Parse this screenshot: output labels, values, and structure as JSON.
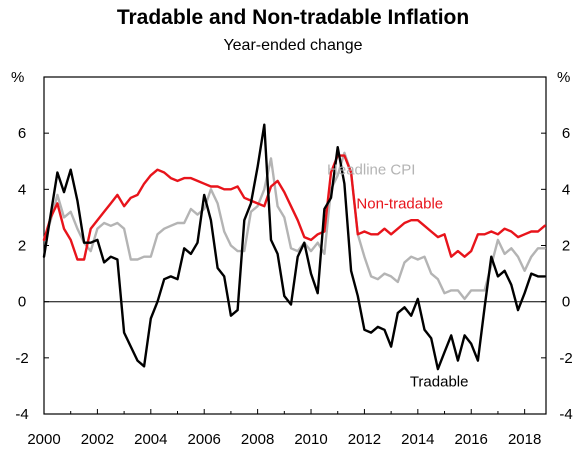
{
  "chart_data": {
    "type": "line",
    "title": "Tradable and Non-tradable Inflation",
    "subtitle": "Year-ended change",
    "unit_left": "%",
    "unit_right": "%",
    "ylim": [
      -4,
      8
    ],
    "yticks": [
      -4,
      -2,
      0,
      2,
      4,
      6
    ],
    "xlim": [
      2000.0,
      2018.8
    ],
    "xticks": [
      2000,
      2002,
      2004,
      2006,
      2008,
      2010,
      2012,
      2014,
      2016,
      2018
    ],
    "xtick_labels": [
      "2000",
      "2002",
      "2004",
      "2006",
      "2008",
      "2010",
      "2012",
      "2014",
      "2016",
      "2018"
    ],
    "grid": false,
    "zero_line": true,
    "x": [
      2000.0,
      2000.25,
      2000.5,
      2000.75,
      2001.0,
      2001.25,
      2001.5,
      2001.75,
      2002.0,
      2002.25,
      2002.5,
      2002.75,
      2003.0,
      2003.25,
      2003.5,
      2003.75,
      2004.0,
      2004.25,
      2004.5,
      2004.75,
      2005.0,
      2005.25,
      2005.5,
      2005.75,
      2006.0,
      2006.25,
      2006.5,
      2006.75,
      2007.0,
      2007.25,
      2007.5,
      2007.75,
      2008.0,
      2008.25,
      2008.5,
      2008.75,
      2009.0,
      2009.25,
      2009.5,
      2009.75,
      2010.0,
      2010.25,
      2010.5,
      2010.75,
      2011.0,
      2011.25,
      2011.5,
      2011.75,
      2012.0,
      2012.25,
      2012.5,
      2012.75,
      2013.0,
      2013.25,
      2013.5,
      2013.75,
      2014.0,
      2014.25,
      2014.5,
      2014.75,
      2015.0,
      2015.25,
      2015.5,
      2015.75,
      2016.0,
      2016.25,
      2016.5,
      2016.75,
      2017.0,
      2017.25,
      2017.5,
      2017.75,
      2018.0,
      2018.25,
      2018.5,
      2018.75
    ],
    "series": [
      {
        "name": "Headline CPI",
        "color": "#b4b4b4",
        "label_value": [
          2010.6,
          4.7
        ],
        "values": [
          2.2,
          2.9,
          3.8,
          3.0,
          3.2,
          2.6,
          2.1,
          1.8,
          2.6,
          2.8,
          2.7,
          2.8,
          2.6,
          1.5,
          1.5,
          1.6,
          1.6,
          2.4,
          2.6,
          2.7,
          2.8,
          2.8,
          3.3,
          3.1,
          3.3,
          4.0,
          3.5,
          2.5,
          2.0,
          1.8,
          1.8,
          3.2,
          3.4,
          4.0,
          5.1,
          3.4,
          3.0,
          1.9,
          1.8,
          2.1,
          1.8,
          2.1,
          1.7,
          4.0,
          4.5,
          5.3,
          4.6,
          2.4,
          1.6,
          0.9,
          0.8,
          1.0,
          0.9,
          0.7,
          1.4,
          1.6,
          1.5,
          1.6,
          1.0,
          0.8,
          0.3,
          0.4,
          0.4,
          0.1,
          0.4,
          0.4,
          0.4,
          1.3,
          2.2,
          1.7,
          1.9,
          1.6,
          1.1,
          1.6,
          1.9,
          1.9
        ]
      },
      {
        "name": "Non-tradable",
        "color": "#e8141b",
        "label_value": [
          2011.7,
          3.5
        ],
        "values": [
          2.2,
          3.0,
          3.5,
          2.6,
          2.2,
          1.5,
          1.5,
          2.6,
          2.9,
          3.2,
          3.5,
          3.8,
          3.4,
          3.7,
          3.8,
          4.2,
          4.5,
          4.7,
          4.6,
          4.4,
          4.3,
          4.4,
          4.4,
          4.3,
          4.2,
          4.1,
          4.1,
          4.0,
          4.0,
          4.1,
          3.7,
          3.6,
          3.5,
          3.4,
          4.1,
          4.3,
          3.9,
          3.4,
          2.9,
          2.3,
          2.2,
          2.4,
          2.5,
          4.6,
          5.2,
          5.2,
          4.6,
          2.4,
          2.5,
          2.4,
          2.4,
          2.6,
          2.4,
          2.6,
          2.8,
          2.9,
          2.9,
          2.7,
          2.5,
          2.3,
          2.4,
          1.6,
          1.8,
          1.6,
          1.8,
          2.4,
          2.4,
          2.5,
          2.4,
          2.6,
          2.5,
          2.3,
          2.4,
          2.5,
          2.5,
          2.7
        ]
      },
      {
        "name": "Tradable",
        "color": "#000000",
        "label_value": [
          2013.7,
          -2.85
        ],
        "values": [
          1.6,
          3.1,
          4.6,
          3.9,
          4.7,
          3.6,
          2.1,
          2.1,
          2.2,
          1.4,
          1.6,
          1.5,
          -1.1,
          -1.6,
          -2.1,
          -2.3,
          -0.6,
          0.0,
          0.8,
          0.9,
          0.8,
          1.9,
          1.7,
          2.1,
          3.8,
          2.9,
          1.2,
          0.9,
          -0.5,
          -0.3,
          2.9,
          3.5,
          4.8,
          6.3,
          2.2,
          1.7,
          0.2,
          -0.1,
          1.6,
          2.1,
          1.0,
          0.3,
          3.3,
          3.7,
          5.5,
          4.2,
          1.1,
          0.2,
          -1.0,
          -1.1,
          -0.9,
          -1.0,
          -1.6,
          -0.4,
          -0.2,
          -0.5,
          0.1,
          -1.0,
          -1.3,
          -2.4,
          -1.8,
          -1.2,
          -2.1,
          -1.2,
          -1.5,
          -2.1,
          -0.2,
          1.6,
          0.9,
          1.1,
          0.6,
          -0.3,
          0.3,
          1.0,
          0.9,
          0.9
        ]
      }
    ]
  }
}
